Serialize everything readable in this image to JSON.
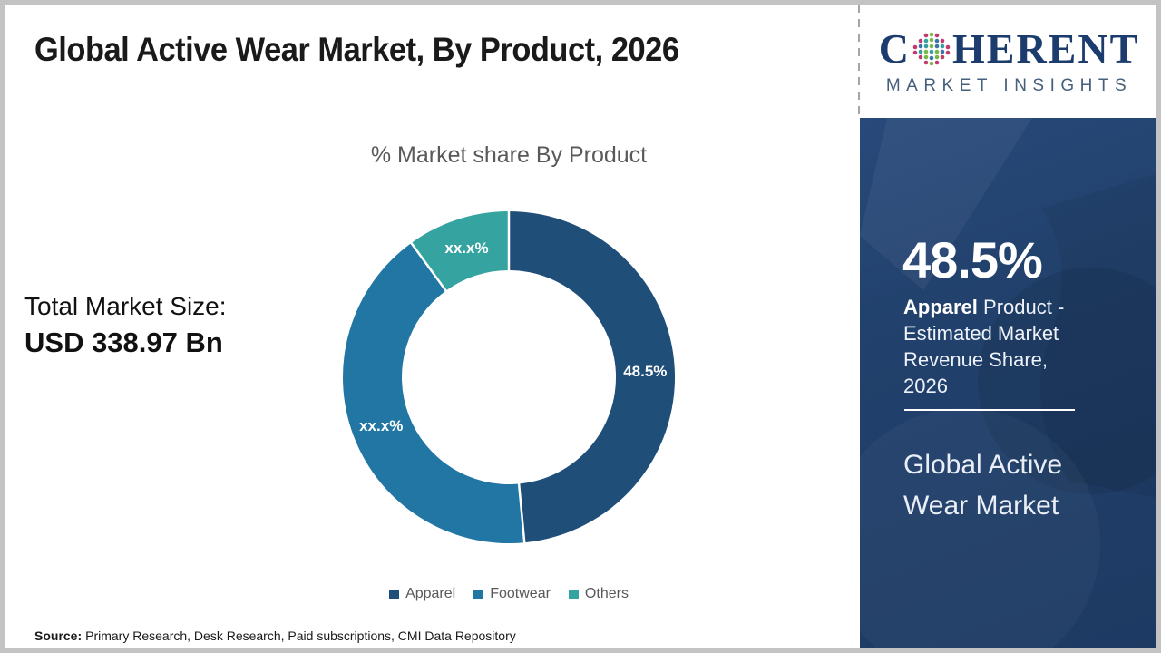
{
  "title": "Global Active Wear Market, By Product, 2026",
  "logo": {
    "part1": "C",
    "part2": "HERENT",
    "subtitle": "MARKET INSIGHTS",
    "globe_icon": "dotted-globe"
  },
  "left_panel": {
    "total_label": "Total Market Size:",
    "total_value": "USD 338.97 Bn"
  },
  "chart_data": {
    "type": "pie",
    "donut": true,
    "title": "% Market share By Product",
    "start_angle_deg": 0,
    "legend_position": "bottom",
    "label_color": "#ffffff",
    "segments": [
      {
        "name": "Apparel",
        "value": 48.5,
        "label": "48.5%",
        "color": "#1f4e79"
      },
      {
        "name": "Footwear",
        "value": 41.5,
        "label": "xx.x%",
        "color": "#2176a3"
      },
      {
        "name": "Others",
        "value": 10.0,
        "label": "xx.x%",
        "color": "#35a3a0"
      }
    ]
  },
  "source": {
    "prefix": "Source:",
    "text": "Primary Research, Desk Research, Paid subscriptions, CMI Data Repository"
  },
  "sidebar": {
    "stat_value": "48.5%",
    "stat_desc_bold": "Apparel",
    "stat_desc_rest": " Product - Estimated Market Revenue Share, 2026",
    "footer_title": "Global Active Wear Market",
    "background_color": "#21406b"
  }
}
